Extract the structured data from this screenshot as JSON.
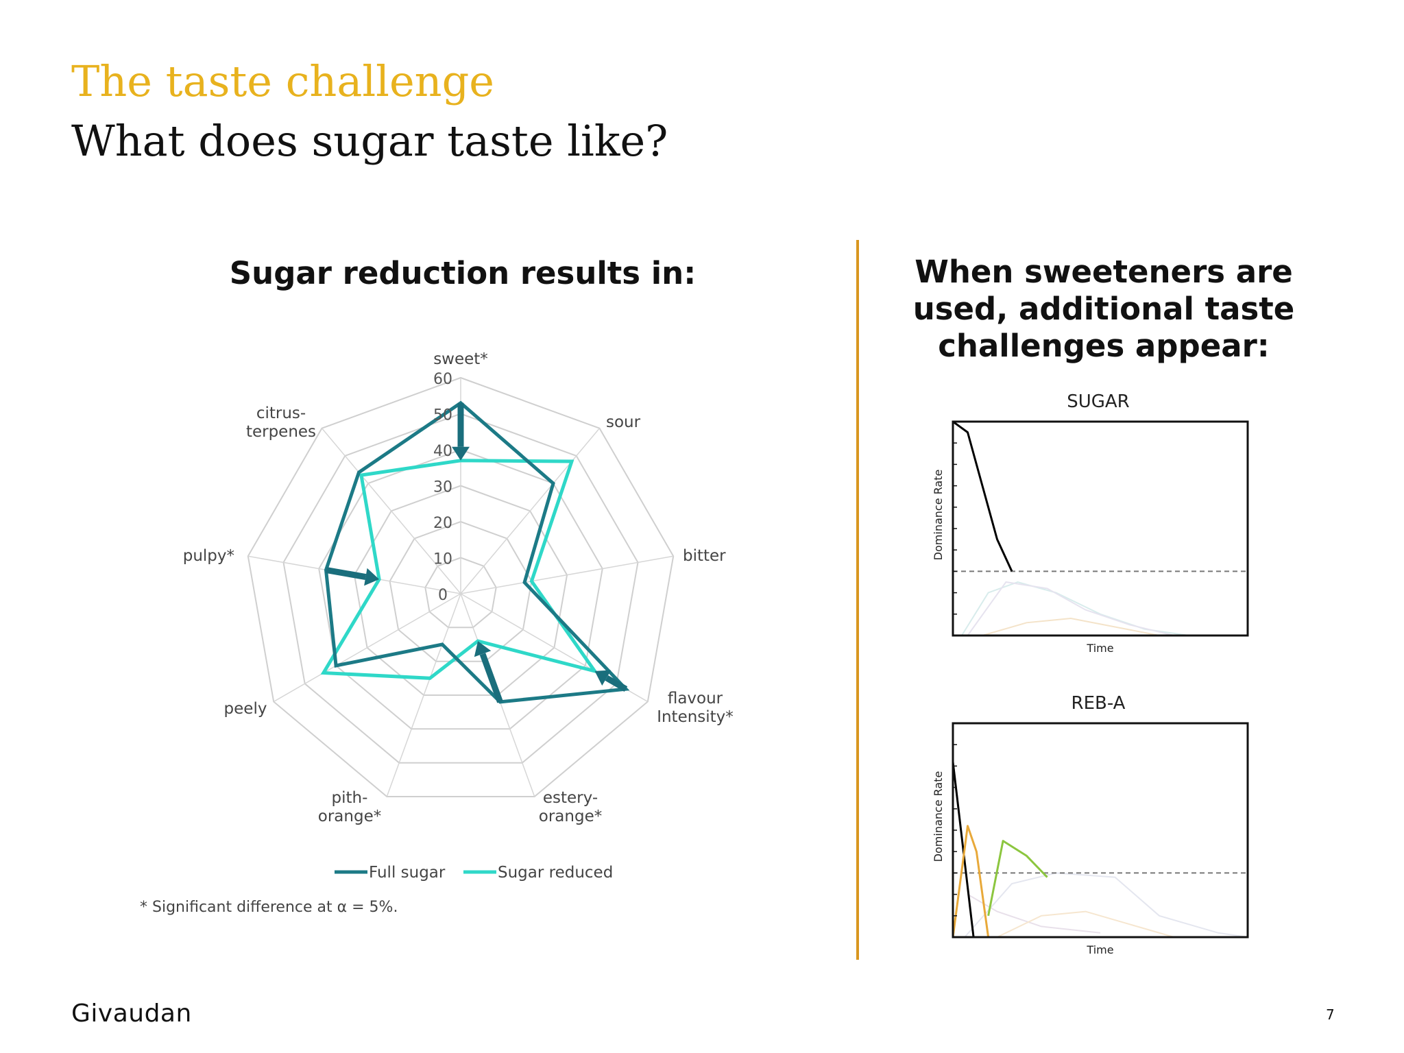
{
  "header": {
    "title": "The taste challenge",
    "subtitle": "What does sugar taste like?"
  },
  "left_heading": "Sugar reduction results in:",
  "right_heading": {
    "line1": "When sweeteners are",
    "line2": "used, additional taste",
    "line3": "challenges appear:"
  },
  "footer": {
    "logo": "Givaudan",
    "page_number": "7"
  },
  "colors": {
    "title_accent": "#e8b21e",
    "divider": "#d9961f",
    "full_sugar": "#1c7a86",
    "sugar_reduced": "#2fd8c8"
  },
  "chart_data": [
    {
      "type": "radar",
      "axes": [
        {
          "line1": "sweet*",
          "line2": ""
        },
        {
          "line1": "sour",
          "line2": ""
        },
        {
          "line1": "bitter",
          "line2": ""
        },
        {
          "line1": "flavour",
          "line2": "Intensity*"
        },
        {
          "line1": "estery-",
          "line2": "orange*"
        },
        {
          "line1": "pith-",
          "line2": "orange*"
        },
        {
          "line1": "peely",
          "line2": ""
        },
        {
          "line1": "pulpy*",
          "line2": ""
        },
        {
          "line1": "citrus-",
          "line2": "terpenes"
        }
      ],
      "ticks": [
        "0",
        "10",
        "20",
        "30",
        "40",
        "50",
        "60"
      ],
      "rmax": 60,
      "series": [
        {
          "name": "Full sugar",
          "values": [
            53,
            40,
            18,
            53,
            32,
            15,
            40,
            38,
            44
          ]
        },
        {
          "name": "Sugar reduced",
          "values": [
            37,
            48,
            20,
            43,
            14,
            25,
            44,
            23,
            43
          ]
        }
      ],
      "footnote": "* Significant difference at α = 5%."
    },
    {
      "type": "line",
      "title": "SUGAR",
      "xlabel": "Time",
      "ylabel": "Dominance Rate",
      "series": [
        {
          "name": "sugar",
          "color": "#000000",
          "x": [
            0,
            0.05,
            0.1,
            0.15,
            0.2
          ],
          "y": [
            1.0,
            0.95,
            0.7,
            0.45,
            0.3
          ]
        }
      ],
      "threshold": 0.3
    },
    {
      "type": "line",
      "title": "REB-A",
      "xlabel": "Time",
      "ylabel": "Dominance Rate",
      "series": [
        {
          "name": "series-black",
          "color": "#000000",
          "x": [
            0,
            0.07
          ],
          "y": [
            0.82,
            0
          ]
        },
        {
          "name": "series-orange",
          "color": "#e8a93a",
          "x": [
            0,
            0.05,
            0.08,
            0.12
          ],
          "y": [
            0,
            0.52,
            0.4,
            0
          ]
        },
        {
          "name": "series-green",
          "color": "#8cc63f",
          "x": [
            0.12,
            0.17,
            0.25,
            0.32
          ],
          "y": [
            0.1,
            0.45,
            0.38,
            0.28
          ]
        }
      ],
      "threshold": 0.3
    }
  ]
}
